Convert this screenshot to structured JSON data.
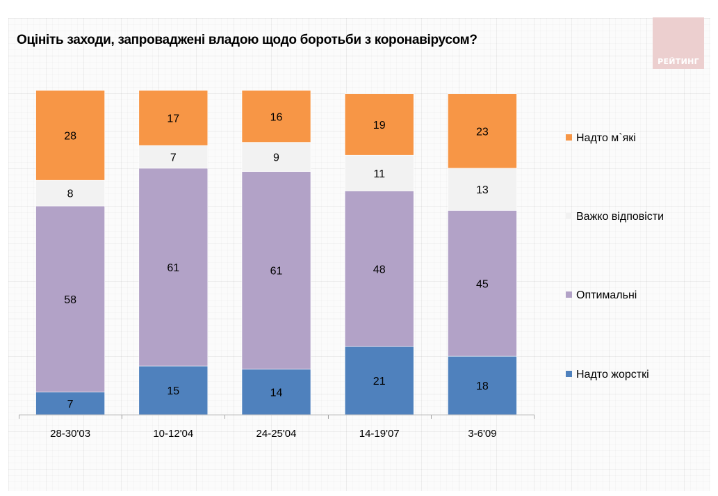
{
  "branding": {
    "logo_text": "РЕЙТИНГ"
  },
  "colors": {
    "too_soft": "#f79646",
    "hard_to_say": "#f2f2f2",
    "optimal": "#b2a2c7",
    "too_harsh": "#4f81bd",
    "axis": "#a6a6a6",
    "logo_bg": "#eccfcf"
  },
  "chart_data": {
    "type": "bar",
    "stacked": true,
    "title": "Оцініть заходи, запроваджені владою щодо боротьби з коронавірусом?",
    "xlabel": "",
    "ylabel": "",
    "ylim": [
      0,
      100
    ],
    "grid": false,
    "legend_position": "right",
    "categories": [
      "28-30'03",
      "10-12'04",
      "24-25'04",
      "14-19'07",
      "3-6'09"
    ],
    "series": [
      {
        "name": "Надто жорсткі",
        "color": "#4f81bd",
        "values": [
          7,
          15,
          14,
          21,
          18
        ]
      },
      {
        "name": "Оптимальні",
        "color": "#b2a2c7",
        "values": [
          58,
          61,
          61,
          48,
          45
        ]
      },
      {
        "name": "Важко відповісти",
        "color": "#f2f2f2",
        "values": [
          8,
          7,
          9,
          11,
          13
        ]
      },
      {
        "name": "Надто м`які",
        "color": "#f79646",
        "values": [
          28,
          17,
          16,
          19,
          23
        ]
      }
    ],
    "legend_order": [
      "Надто м`які",
      "Важко відповісти",
      "Оптимальні",
      "Надто жорсткі"
    ]
  }
}
